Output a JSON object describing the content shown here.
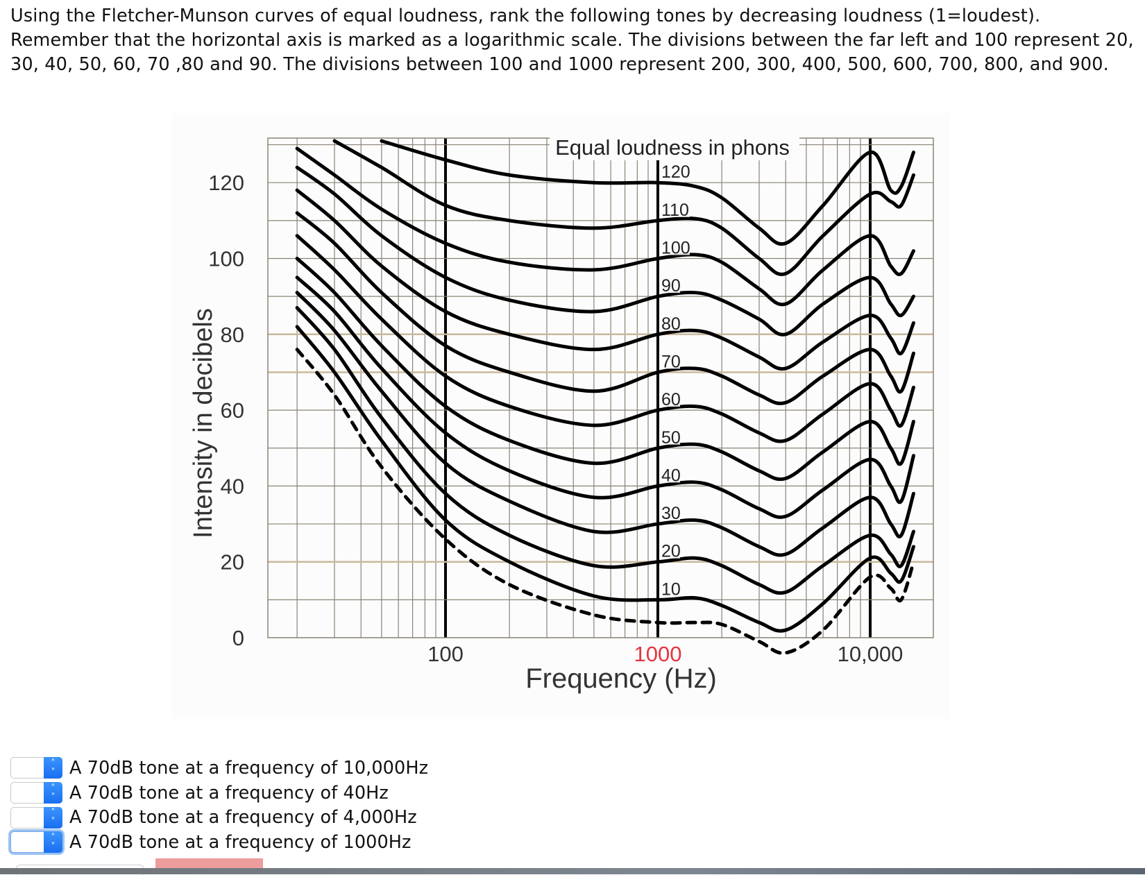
{
  "question": {
    "text": "Using the Fletcher-Munson curves of equal loudness, rank the following tones by decreasing loudness (1=loudest). Remember that the horizontal axis is marked as a logarithmic scale. The divisions between the far left and 100 represent 20, 30, 40, 50, 60, 70 ,80 and 90. The divisions between 100 and 1000 represent 200, 300, 400, 500, 600, 700, 800, and 900."
  },
  "rows": [
    {
      "selected": "",
      "label": "A 70dB tone at a frequency of 10,000Hz"
    },
    {
      "selected": "",
      "label": "A 70dB tone at a frequency of 40Hz"
    },
    {
      "selected": "",
      "label": "A 70dB tone at a frequency of 4,000Hz"
    },
    {
      "selected": "",
      "label": "A 70dB tone at a frequency of 1000Hz"
    }
  ],
  "select_icon": "up-down-chevron-icon",
  "colors": {
    "accent": "#1a6ff2",
    "highlight_tick": "#e8343f",
    "tan_grid": "#c9b99a",
    "error_bar": "#ee9d9d"
  },
  "chart_data": {
    "type": "line",
    "title": "Equal loudness in phons",
    "xlabel": "Frequency (Hz)",
    "ylabel": "Intensity in decibels",
    "x_scale": "log",
    "xlim": [
      14.6,
      19800
    ],
    "ylim": [
      0,
      132
    ],
    "grid": true,
    "x_ticks": [
      {
        "value": 100,
        "label": "100"
      },
      {
        "value": 1000,
        "label": "1000",
        "highlight": true
      },
      {
        "value": 10000,
        "label": "10,000"
      }
    ],
    "y_ticks": [
      {
        "value": 0,
        "label": "0"
      },
      {
        "value": 20,
        "label": "20"
      },
      {
        "value": 40,
        "label": "40"
      },
      {
        "value": 60,
        "label": "60"
      },
      {
        "value": 80,
        "label": "80"
      },
      {
        "value": 100,
        "label": "100"
      },
      {
        "value": 120,
        "label": "120"
      }
    ],
    "x": [
      20,
      30,
      50,
      100,
      200,
      500,
      1000,
      1500,
      2000,
      3000,
      4000,
      6000,
      10000,
      12500,
      14000,
      16000
    ],
    "series": [
      {
        "label": "",
        "style": "dashed",
        "values": [
          76,
          64,
          45,
          26,
          14,
          6,
          4,
          4,
          3.5,
          -1,
          -4,
          2,
          16,
          13,
          10,
          20
        ]
      },
      {
        "label": "10",
        "values": [
          82,
          70,
          52,
          31,
          20,
          11,
          10,
          10.5,
          8.5,
          4,
          2,
          9,
          21,
          17,
          15,
          24
        ]
      },
      {
        "label": "20",
        "values": [
          87,
          76,
          58,
          38,
          27,
          19,
          20,
          21,
          19,
          14,
          12,
          19,
          27,
          22,
          19,
          28
        ]
      },
      {
        "label": "30",
        "values": [
          91,
          81,
          65,
          46,
          36,
          28,
          30,
          31,
          29,
          24,
          22,
          29,
          37,
          30,
          27,
          38
        ]
      },
      {
        "label": "40",
        "values": [
          95,
          86,
          71,
          54,
          44,
          37,
          40,
          41,
          39,
          34,
          32,
          39,
          47,
          40,
          36,
          48
        ]
      },
      {
        "label": "50",
        "values": [
          100,
          91,
          77,
          61,
          52,
          46,
          50,
          51,
          49,
          44,
          42,
          49,
          57,
          50,
          46,
          57
        ]
      },
      {
        "label": "60",
        "values": [
          106,
          97,
          84,
          69,
          61,
          56,
          60,
          61,
          59,
          54,
          52,
          59,
          67,
          60,
          56,
          66
        ]
      },
      {
        "label": "70",
        "values": [
          112,
          104,
          91,
          77,
          70,
          65,
          70,
          71,
          69,
          64,
          62,
          69,
          76,
          69,
          65,
          75
        ]
      },
      {
        "label": "80",
        "values": [
          118,
          110,
          98,
          86,
          80,
          76,
          80,
          81,
          79,
          74,
          71,
          78,
          85,
          79,
          75,
          83
        ]
      },
      {
        "label": "90",
        "values": [
          124,
          117,
          106,
          95,
          89,
          86,
          90,
          91,
          89,
          84,
          80,
          88,
          95,
          88,
          85,
          90
        ]
      },
      {
        "label": "100",
        "values": [
          129,
          122,
          113,
          104,
          99,
          97,
          100,
          101,
          99,
          92,
          88,
          97,
          106,
          98,
          96,
          102
        ]
      },
      {
        "label": "110",
        "values": [
          null,
          131,
          124,
          114,
          110,
          108,
          110,
          110.5,
          108,
          100,
          96,
          106,
          117,
          115,
          114,
          122
        ]
      },
      {
        "label": "120",
        "values": [
          null,
          null,
          131,
          126,
          122,
          120,
          120,
          119,
          116,
          108,
          104,
          114,
          128,
          118,
          119,
          128
        ]
      }
    ]
  }
}
